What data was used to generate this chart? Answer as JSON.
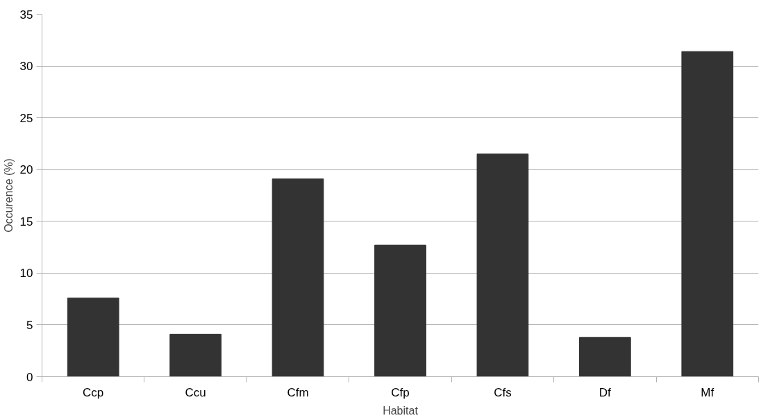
{
  "chart_data": {
    "type": "bar",
    "xlabel": "Habitat",
    "ylabel": "Occurence (%)",
    "categories": [
      "Ccp",
      "Ccu",
      "Cfm",
      "Cfp",
      "Cfs",
      "Df",
      "Mf"
    ],
    "values": [
      7.6,
      4.1,
      19.1,
      12.7,
      21.5,
      3.8,
      31.4
    ],
    "color": "#333333",
    "ylim": [
      0,
      35
    ],
    "yticks": [
      0,
      5,
      10,
      15,
      20,
      25,
      30,
      35
    ],
    "grid": "y"
  }
}
